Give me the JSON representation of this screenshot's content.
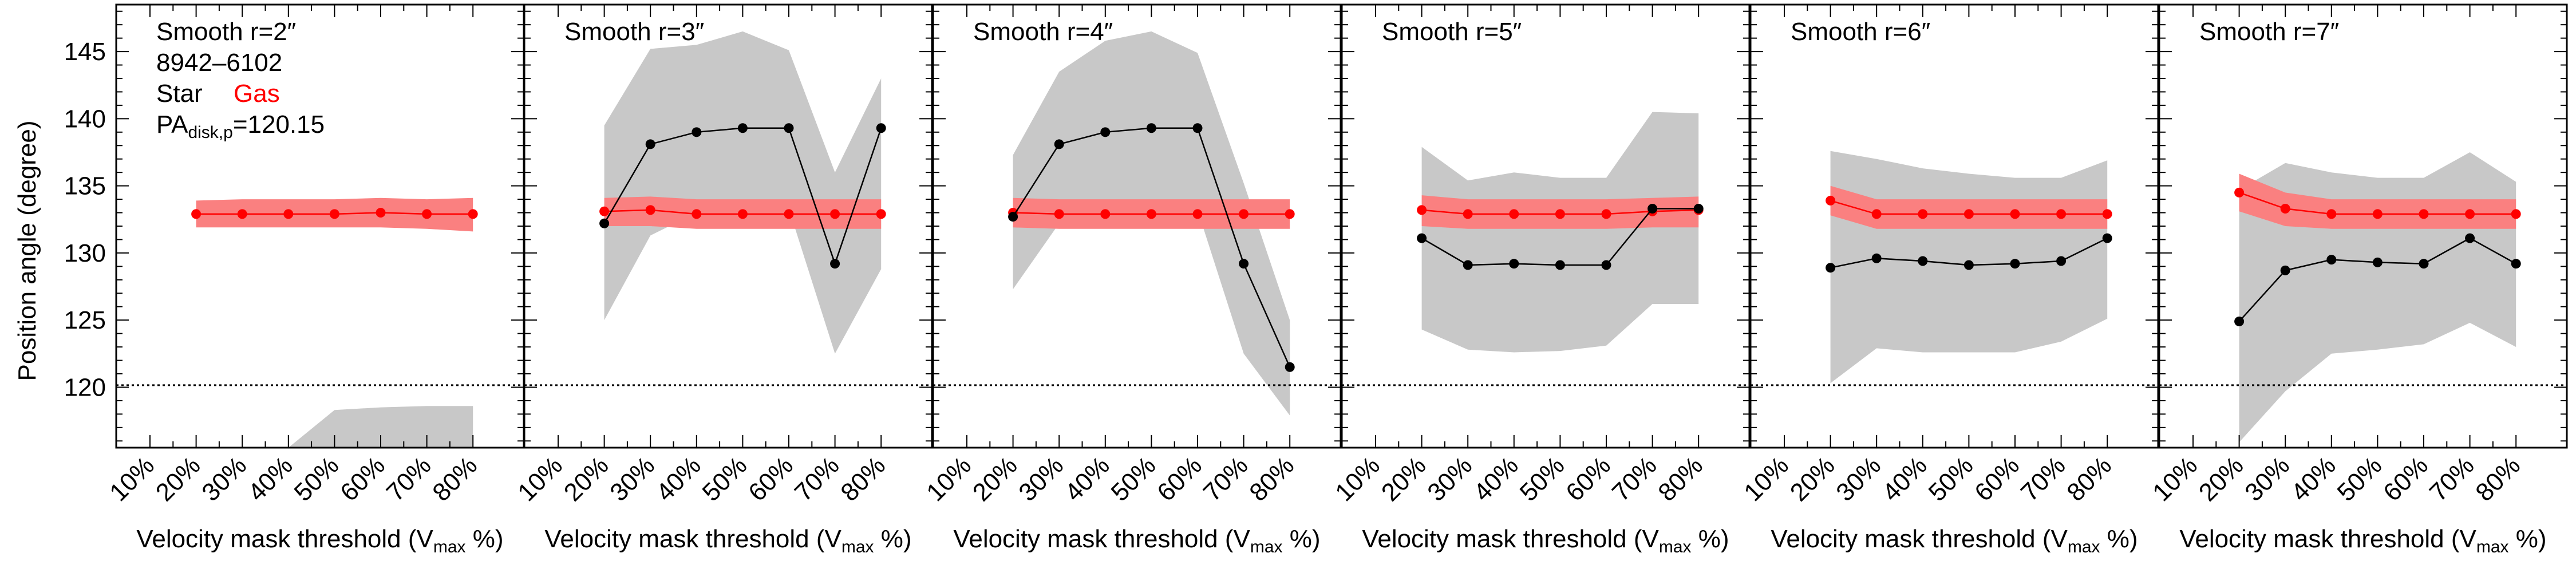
{
  "figure": {
    "ylabel": "Position angle (degree)",
    "xlabel_main": "Velocity mask threshold (V",
    "xlabel_sub": "max",
    "xlabel_end": " %)",
    "galaxy_id": "8942–6102",
    "legend_star": "Star",
    "legend_gas": "Gas",
    "pa_main": "PA",
    "pa_sub": "disk,p",
    "pa_value": "=120.15"
  },
  "colors": {
    "star": "#000000",
    "gas": "#ff0000",
    "gas_band": "#fa8080",
    "star_band": "#c8c8c8",
    "reference_line": "#000000"
  },
  "chart_data": [
    {
      "type": "line",
      "title": "Smooth r=2″",
      "categories": [
        "10%",
        "20%",
        "30%",
        "40%",
        "50%",
        "60%",
        "70%",
        "80%"
      ],
      "ylabel": "Position angle (degree)",
      "ylim": [
        115.5,
        148.5
      ],
      "yticks": [
        120,
        125,
        130,
        135,
        140,
        145
      ],
      "reference_line": 120.15,
      "series": [
        {
          "name": "Star",
          "values": [
            null,
            null,
            null,
            null,
            null,
            null,
            null,
            null
          ],
          "band_low": [
            null,
            null,
            null,
            115.5,
            115.5,
            115.5,
            115.5,
            115.5
          ],
          "band_high": [
            null,
            null,
            null,
            115.5,
            118.3,
            118.5,
            118.6,
            118.6
          ]
        },
        {
          "name": "Gas",
          "values": [
            null,
            132.9,
            132.9,
            132.9,
            132.9,
            133.0,
            132.9,
            132.9
          ],
          "band_low": [
            null,
            131.9,
            131.9,
            131.9,
            131.9,
            131.9,
            131.8,
            131.6
          ],
          "band_high": [
            null,
            133.9,
            134.0,
            134.0,
            134.0,
            134.1,
            134.0,
            134.1
          ]
        }
      ]
    },
    {
      "type": "line",
      "title": "Smooth r=3″",
      "categories": [
        "10%",
        "20%",
        "30%",
        "40%",
        "50%",
        "60%",
        "70%",
        "80%"
      ],
      "ylim": [
        115.5,
        148.5
      ],
      "yticks": [
        120,
        125,
        130,
        135,
        140,
        145
      ],
      "reference_line": 120.15,
      "series": [
        {
          "name": "Star",
          "values": [
            null,
            132.2,
            138.1,
            139.0,
            139.3,
            139.3,
            129.2,
            139.3
          ],
          "band_low": [
            null,
            125.0,
            131.3,
            133.0,
            133.5,
            133.3,
            122.5,
            128.8
          ],
          "band_high": [
            null,
            139.5,
            145.2,
            145.5,
            146.5,
            145.1,
            136.0,
            143.0
          ]
        },
        {
          "name": "Gas",
          "values": [
            null,
            133.1,
            133.2,
            132.9,
            132.9,
            132.9,
            132.9,
            132.9
          ],
          "band_low": [
            null,
            132.0,
            132.0,
            131.8,
            131.8,
            131.8,
            131.8,
            131.8
          ],
          "band_high": [
            null,
            134.1,
            134.2,
            134.0,
            134.0,
            134.0,
            134.0,
            134.0
          ]
        }
      ]
    },
    {
      "type": "line",
      "title": "Smooth r=4″",
      "categories": [
        "10%",
        "20%",
        "30%",
        "40%",
        "50%",
        "60%",
        "70%",
        "80%"
      ],
      "ylim": [
        115.5,
        148.5
      ],
      "yticks": [
        120,
        125,
        130,
        135,
        140,
        145
      ],
      "reference_line": 120.15,
      "series": [
        {
          "name": "Star",
          "values": [
            null,
            132.7,
            138.1,
            139.0,
            139.3,
            139.3,
            129.2,
            121.5
          ],
          "band_low": [
            null,
            127.3,
            132.2,
            133.0,
            133.3,
            133.2,
            122.5,
            117.9
          ],
          "band_high": [
            null,
            137.3,
            143.5,
            145.8,
            146.5,
            144.9,
            135.2,
            125.0
          ]
        },
        {
          "name": "Gas",
          "values": [
            null,
            133.0,
            132.9,
            132.9,
            132.9,
            132.9,
            132.9,
            132.9
          ],
          "band_low": [
            null,
            131.9,
            131.8,
            131.8,
            131.8,
            131.8,
            131.8,
            131.8
          ],
          "band_high": [
            null,
            134.1,
            134.0,
            134.0,
            134.0,
            134.0,
            134.0,
            134.0
          ]
        }
      ]
    },
    {
      "type": "line",
      "title": "Smooth r=5″",
      "categories": [
        "10%",
        "20%",
        "30%",
        "40%",
        "50%",
        "60%",
        "70%",
        "80%"
      ],
      "ylim": [
        115.5,
        148.5
      ],
      "yticks": [
        120,
        125,
        130,
        135,
        140,
        145
      ],
      "reference_line": 120.15,
      "series": [
        {
          "name": "Star",
          "values": [
            null,
            131.1,
            129.1,
            129.2,
            129.1,
            129.1,
            133.3,
            133.3
          ],
          "band_low": [
            null,
            124.3,
            122.8,
            122.6,
            122.7,
            123.1,
            126.2,
            126.2
          ],
          "band_high": [
            null,
            137.9,
            135.4,
            136.0,
            135.6,
            135.6,
            140.5,
            140.4
          ]
        },
        {
          "name": "Gas",
          "values": [
            null,
            133.2,
            132.9,
            132.9,
            132.9,
            132.9,
            133.1,
            133.2
          ],
          "band_low": [
            null,
            132.0,
            131.8,
            131.8,
            131.8,
            131.8,
            131.9,
            131.9
          ],
          "band_high": [
            null,
            134.3,
            134.0,
            134.0,
            134.0,
            134.0,
            134.1,
            134.2
          ]
        }
      ]
    },
    {
      "type": "line",
      "title": "Smooth r=6″",
      "categories": [
        "10%",
        "20%",
        "30%",
        "40%",
        "50%",
        "60%",
        "70%",
        "80%"
      ],
      "ylim": [
        115.5,
        148.5
      ],
      "yticks": [
        120,
        125,
        130,
        135,
        140,
        145
      ],
      "reference_line": 120.15,
      "series": [
        {
          "name": "Star",
          "values": [
            null,
            128.9,
            129.6,
            129.4,
            129.1,
            129.2,
            129.4,
            131.1
          ],
          "band_low": [
            null,
            120.3,
            122.9,
            122.6,
            122.6,
            122.6,
            123.4,
            125.1
          ],
          "band_high": [
            null,
            137.6,
            137.0,
            136.3,
            135.9,
            135.6,
            135.6,
            136.9
          ]
        },
        {
          "name": "Gas",
          "values": [
            null,
            133.9,
            132.9,
            132.9,
            132.9,
            132.9,
            132.9,
            132.9
          ],
          "band_low": [
            null,
            132.8,
            131.8,
            131.8,
            131.8,
            131.8,
            131.8,
            131.8
          ],
          "band_high": [
            null,
            135.0,
            134.0,
            134.0,
            134.0,
            134.0,
            134.0,
            134.0
          ]
        }
      ]
    },
    {
      "type": "line",
      "title": "Smooth r=7″",
      "categories": [
        "10%",
        "20%",
        "30%",
        "40%",
        "50%",
        "60%",
        "70%",
        "80%"
      ],
      "ylim": [
        115.5,
        148.5
      ],
      "yticks": [
        120,
        125,
        130,
        135,
        140,
        145
      ],
      "reference_line": 120.15,
      "series": [
        {
          "name": "Star",
          "values": [
            null,
            124.9,
            128.7,
            129.5,
            129.3,
            129.2,
            131.1,
            129.2
          ],
          "band_low": [
            null,
            115.9,
            119.7,
            122.5,
            122.8,
            123.2,
            124.8,
            123.0
          ],
          "band_high": [
            null,
            134.7,
            136.7,
            136.0,
            135.6,
            135.6,
            137.5,
            135.3
          ]
        },
        {
          "name": "Gas",
          "values": [
            null,
            134.5,
            133.3,
            132.9,
            132.9,
            132.9,
            132.9,
            132.9
          ],
          "band_low": [
            null,
            133.1,
            132.0,
            131.8,
            131.8,
            131.8,
            131.8,
            131.8
          ],
          "band_high": [
            null,
            135.9,
            134.5,
            134.0,
            134.0,
            134.0,
            134.0,
            134.0
          ]
        }
      ]
    }
  ]
}
